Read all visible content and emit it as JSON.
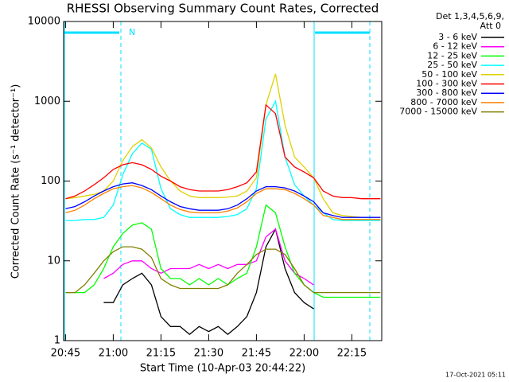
{
  "chart_data": {
    "type": "line",
    "title": "RHESSI Observing Summary Count Rates, Corrected",
    "x_label": "Start Time (10-Apr-03 20:44:22)",
    "y_label": "Corrected Count Rate (s⁻¹ detector⁻¹)",
    "legend_header": [
      "Det 1,3,4,5,6,9,",
      "Att 0"
    ],
    "annotation": "N",
    "footer": "17-Oct-2021 05:11",
    "log_y": true,
    "xlim": [
      -0.6,
      99.4
    ],
    "ylim": [
      1,
      10000
    ],
    "xticks": [
      {
        "value": 0,
        "label": "20:45"
      },
      {
        "value": 15,
        "label": "21:00"
      },
      {
        "value": 30,
        "label": "21:15"
      },
      {
        "value": 45,
        "label": "21:30"
      },
      {
        "value": 60,
        "label": "21:45"
      },
      {
        "value": 75,
        "label": "22:00"
      },
      {
        "value": 90,
        "label": "22:15"
      }
    ],
    "yticks": [
      1,
      10,
      100,
      1000,
      10000
    ],
    "x": [
      0,
      3,
      6,
      9,
      12,
      15,
      18,
      21,
      24,
      27,
      30,
      33,
      36,
      39,
      42,
      45,
      48,
      51,
      54,
      57,
      60,
      63,
      66,
      69,
      72,
      75,
      78,
      81,
      84,
      87,
      90,
      93,
      96,
      99
    ],
    "series": [
      {
        "name": "3 - 6 keV",
        "color": "#000000",
        "values": [
          null,
          null,
          null,
          null,
          3,
          3,
          5,
          6,
          7,
          5,
          2,
          1.5,
          1.5,
          1.2,
          1.5,
          1.3,
          1.5,
          1.2,
          1.5,
          2,
          4,
          15,
          25,
          8,
          4,
          3,
          2.5,
          null,
          null,
          null,
          null,
          null,
          null,
          null
        ]
      },
      {
        "name": "6 - 12 keV",
        "color": "#ff00ff",
        "values": [
          null,
          null,
          null,
          null,
          6,
          7,
          9,
          10,
          10,
          8,
          7,
          8,
          8,
          8,
          9,
          8,
          9,
          8,
          9,
          9,
          10,
          20,
          25,
          10,
          7,
          6,
          5,
          null,
          null,
          null,
          null,
          null,
          null,
          null
        ]
      },
      {
        "name": "12 - 25 keV",
        "color": "#00ff00",
        "values": [
          4,
          4,
          4,
          5,
          8,
          15,
          22,
          28,
          30,
          25,
          8,
          6,
          6,
          5,
          6,
          5,
          6,
          5,
          6,
          7,
          15,
          50,
          40,
          15,
          7,
          5,
          4,
          3.5,
          3.5,
          3.5,
          3.5,
          3.5,
          3.5,
          3.5
        ]
      },
      {
        "name": "25 - 50 keV",
        "color": "#00ffff",
        "values": [
          32,
          32,
          33,
          33,
          35,
          50,
          120,
          220,
          300,
          250,
          80,
          45,
          38,
          35,
          35,
          35,
          35,
          36,
          38,
          45,
          80,
          600,
          1000,
          200,
          90,
          65,
          50,
          40,
          33,
          32,
          32,
          32,
          32,
          32
        ]
      },
      {
        "name": "50 - 100 keV",
        "color": "#e0d000",
        "values": [
          60,
          62,
          65,
          68,
          75,
          100,
          180,
          270,
          330,
          260,
          150,
          100,
          75,
          65,
          62,
          62,
          62,
          63,
          65,
          75,
          110,
          900,
          2200,
          500,
          200,
          150,
          110,
          60,
          40,
          37,
          36,
          35,
          35,
          35
        ]
      },
      {
        "name": "100 - 300 keV",
        "color": "#ff0000",
        "values": [
          60,
          65,
          75,
          90,
          110,
          140,
          160,
          170,
          160,
          140,
          115,
          100,
          85,
          78,
          75,
          75,
          75,
          78,
          85,
          95,
          130,
          900,
          700,
          200,
          150,
          130,
          110,
          75,
          65,
          62,
          62,
          60,
          60,
          60
        ]
      },
      {
        "name": "300 - 800 keV",
        "color": "#0000ff",
        "values": [
          45,
          48,
          55,
          65,
          75,
          85,
          92,
          95,
          88,
          78,
          65,
          55,
          48,
          45,
          43,
          43,
          43,
          45,
          50,
          60,
          75,
          85,
          85,
          82,
          75,
          65,
          55,
          40,
          37,
          35,
          35,
          35,
          35,
          35
        ]
      },
      {
        "name": "800 - 7000 keV",
        "color": "#ff8000",
        "values": [
          40,
          43,
          50,
          60,
          70,
          80,
          85,
          88,
          82,
          72,
          60,
          50,
          44,
          41,
          40,
          40,
          40,
          42,
          46,
          55,
          70,
          80,
          80,
          78,
          70,
          60,
          50,
          37,
          35,
          33,
          33,
          33,
          33,
          33
        ]
      },
      {
        "name": "7000 - 15000 keV",
        "color": "#808000",
        "values": [
          4,
          4,
          5,
          7,
          10,
          13,
          15,
          15,
          14,
          11,
          6,
          5,
          4.5,
          4.5,
          4.5,
          4.5,
          4.5,
          5,
          7,
          9,
          12,
          14,
          14,
          12,
          8,
          5,
          4,
          4,
          4,
          4,
          4,
          4,
          4,
          4
        ]
      }
    ]
  }
}
